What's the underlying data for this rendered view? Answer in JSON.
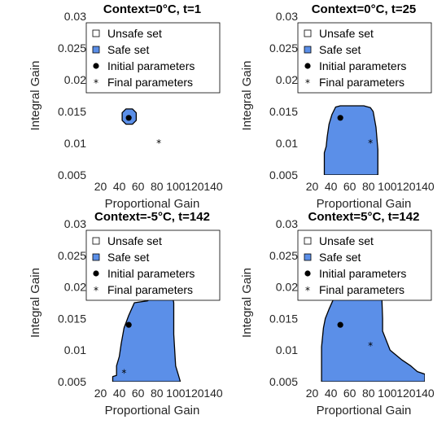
{
  "chart_data": [
    {
      "type": "area",
      "title": "Context=0°C, t=1",
      "xlabel": "Proportional Gain",
      "ylabel": "Integral Gain",
      "xlim": [
        10,
        140
      ],
      "ylim": [
        0.005,
        0.03
      ],
      "xticks": [
        "20",
        "40",
        "60",
        "80",
        "100",
        "120",
        "140"
      ],
      "yticks": [
        "0.005",
        "0.01",
        "0.015",
        "0.02",
        "0.025",
        "0.03"
      ],
      "legend": {
        "position": "top-right",
        "entries": [
          "Unsafe set",
          "Safe set",
          "Initial parameters",
          "Final parameters"
        ]
      },
      "safe_region": [
        [
          43,
          0.0148
        ],
        [
          47,
          0.0154
        ],
        [
          54,
          0.0154
        ],
        [
          58,
          0.0148
        ],
        [
          58,
          0.0136
        ],
        [
          54,
          0.013
        ],
        [
          47,
          0.013
        ],
        [
          43,
          0.0136
        ]
      ],
      "initial": [
        50,
        0.014
      ],
      "final": [
        82,
        0.0101
      ]
    },
    {
      "type": "area",
      "title": "Context=0°C, t=25",
      "xlabel": "Proportional Gain",
      "ylabel": "Integral Gain",
      "xlim": [
        10,
        140
      ],
      "ylim": [
        0.005,
        0.03
      ],
      "xticks": [
        "20",
        "40",
        "60",
        "80",
        "100",
        "120",
        "140"
      ],
      "yticks": [
        "0.005",
        "0.01",
        "0.015",
        "0.02",
        "0.025",
        "0.03"
      ],
      "legend": {
        "position": "top-right",
        "entries": [
          "Unsafe set",
          "Safe set",
          "Initial parameters",
          "Final parameters"
        ]
      },
      "safe_region": [
        [
          33,
          0.005
        ],
        [
          33,
          0.0085
        ],
        [
          35,
          0.0095
        ],
        [
          36,
          0.011
        ],
        [
          38,
          0.013
        ],
        [
          41,
          0.0145
        ],
        [
          45,
          0.0157
        ],
        [
          50,
          0.0159
        ],
        [
          75,
          0.0159
        ],
        [
          82,
          0.0156
        ],
        [
          85,
          0.015
        ],
        [
          88,
          0.0125
        ],
        [
          90,
          0.009
        ],
        [
          90,
          0.005
        ]
      ],
      "initial": [
        50,
        0.014
      ],
      "final": [
        82,
        0.0101
      ]
    },
    {
      "type": "area",
      "title": "Context=-5°C, t=142",
      "xlabel": "Proportional Gain",
      "ylabel": "Integral Gain",
      "xlim": [
        10,
        140
      ],
      "ylim": [
        0.005,
        0.03
      ],
      "xticks": [
        "20",
        "40",
        "60",
        "80",
        "100",
        "120",
        "140"
      ],
      "yticks": [
        "0.005",
        "0.01",
        "0.015",
        "0.02",
        "0.025",
        "0.03"
      ],
      "legend": {
        "position": "top-right",
        "entries": [
          "Unsafe set",
          "Safe set",
          "Initial parameters",
          "Final parameters"
        ]
      },
      "safe_region": [
        [
          33,
          0.005
        ],
        [
          33,
          0.0058
        ],
        [
          37,
          0.006
        ],
        [
          37,
          0.0075
        ],
        [
          40,
          0.009
        ],
        [
          42,
          0.011
        ],
        [
          45,
          0.0135
        ],
        [
          50,
          0.0155
        ],
        [
          56,
          0.0175
        ],
        [
          70,
          0.0178
        ],
        [
          75,
          0.0183
        ],
        [
          83,
          0.0184
        ],
        [
          88,
          0.019
        ],
        [
          96,
          0.0191
        ],
        [
          98,
          0.0175
        ],
        [
          98,
          0.0125
        ],
        [
          100,
          0.0075
        ],
        [
          103,
          0.006
        ],
        [
          105,
          0.005
        ]
      ],
      "initial": [
        50,
        0.014
      ],
      "final": [
        45,
        0.0065
      ]
    },
    {
      "type": "area",
      "title": "Context=5°C, t=142",
      "xlabel": "Proportional Gain",
      "ylabel": "Integral Gain",
      "xlim": [
        10,
        140
      ],
      "ylim": [
        0.005,
        0.03
      ],
      "xticks": [
        "20",
        "40",
        "60",
        "80",
        "100",
        "120",
        "140"
      ],
      "yticks": [
        "0.005",
        "0.01",
        "0.015",
        "0.02",
        "0.025",
        "0.03"
      ],
      "legend": {
        "position": "top-right",
        "entries": [
          "Unsafe set",
          "Safe set",
          "Initial parameters",
          "Final parameters"
        ]
      },
      "safe_region": [
        [
          30,
          0.005
        ],
        [
          30,
          0.0105
        ],
        [
          32,
          0.0135
        ],
        [
          34,
          0.015
        ],
        [
          38,
          0.0165
        ],
        [
          44,
          0.0185
        ],
        [
          58,
          0.0195
        ],
        [
          77,
          0.0196
        ],
        [
          87,
          0.0196
        ],
        [
          94,
          0.0193
        ],
        [
          95,
          0.015
        ],
        [
          95,
          0.013
        ],
        [
          103,
          0.01
        ],
        [
          115,
          0.0085
        ],
        [
          125,
          0.0075
        ],
        [
          132,
          0.0066
        ],
        [
          140,
          0.0062
        ],
        [
          140,
          0.005
        ]
      ],
      "initial": [
        50,
        0.014
      ],
      "final": [
        82,
        0.0108
      ]
    }
  ],
  "colors": {
    "safe_fill": "#5b8fe8",
    "boundary": "#000000",
    "text": "#262626"
  }
}
